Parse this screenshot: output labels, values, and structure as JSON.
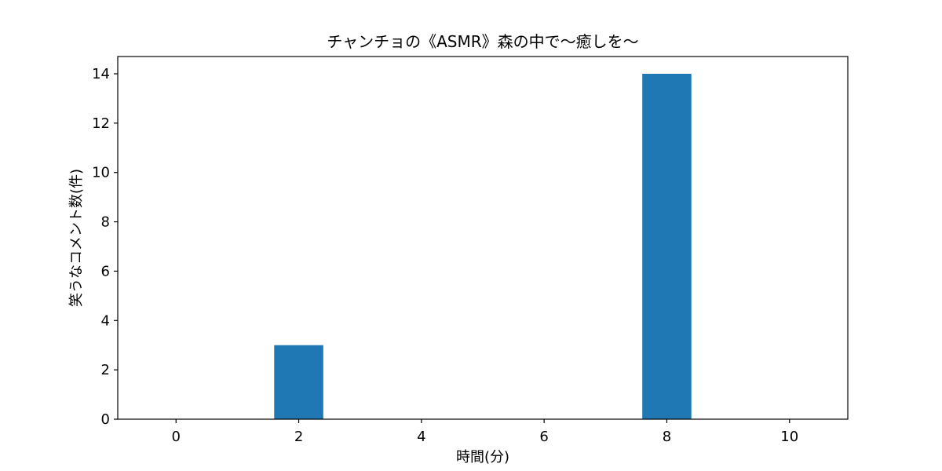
{
  "chart_data": {
    "type": "bar",
    "title": "チャンチョの《ASMR》森の中で〜癒しを〜",
    "xlabel": "時間(分)",
    "ylabel": "笑うなコメント数(件)",
    "x": [
      0,
      2,
      4,
      6,
      8,
      10
    ],
    "values": [
      0,
      3,
      0,
      0,
      14,
      0
    ],
    "bar_width": 0.8,
    "xlim": [
      -0.95,
      10.95
    ],
    "ylim": [
      0,
      14.7
    ],
    "xticks": [
      0,
      2,
      4,
      6,
      8,
      10
    ],
    "yticks": [
      0,
      2,
      4,
      6,
      8,
      10,
      12,
      14
    ],
    "grid": false,
    "bar_color": "#1f77b4"
  }
}
